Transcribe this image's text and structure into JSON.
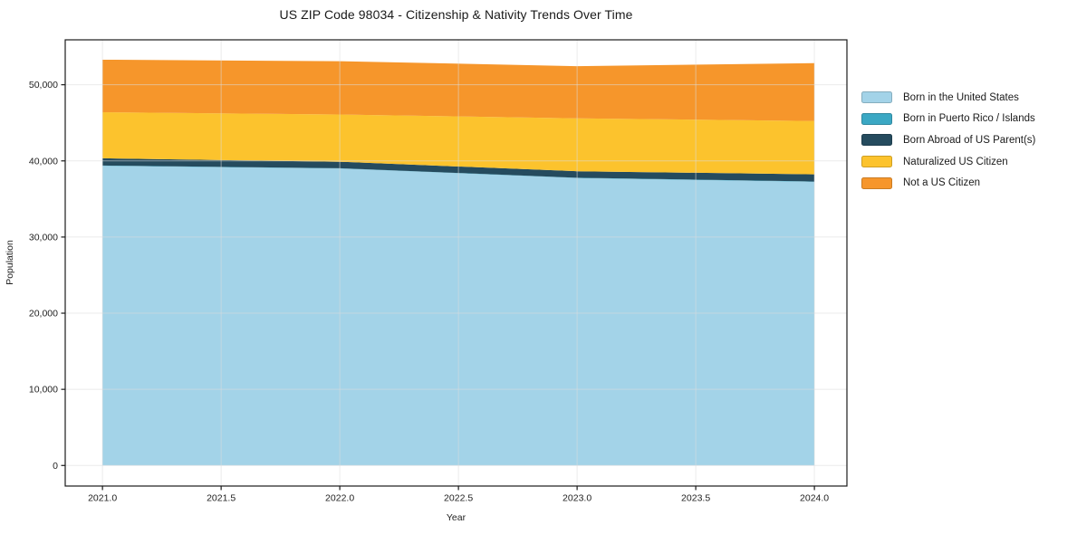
{
  "chart_data": {
    "type": "area",
    "stacked": true,
    "title": "US ZIP Code 98034 - Citizenship & Nativity Trends Over Time",
    "xlabel": "Year",
    "ylabel": "Population",
    "x": [
      2021,
      2022,
      2023,
      2024
    ],
    "series": [
      {
        "name": "Born in the United States",
        "color": "#a3d3e8",
        "values": [
          39350,
          39000,
          37750,
          37250
        ]
      },
      {
        "name": "Born in Puerto Rico / Islands",
        "color": "#3ba8c4",
        "values": [
          40,
          40,
          40,
          40
        ]
      },
      {
        "name": "Born Abroad of US Parent(s)",
        "color": "#254b5e",
        "values": [
          950,
          850,
          850,
          950
        ]
      },
      {
        "name": "Naturalized US Citizen",
        "color": "#fcc32d",
        "values": [
          6050,
          6200,
          6950,
          7000
        ]
      },
      {
        "name": "Not a US Citizen",
        "color": "#f6962b",
        "values": [
          6900,
          7000,
          6850,
          7600
        ]
      }
    ],
    "totals": [
      53290,
      53090,
      52440,
      52840
    ],
    "xticks": [
      2021.0,
      2021.5,
      2022.0,
      2022.5,
      2023.0,
      2023.5,
      2024.0
    ],
    "xtick_labels": [
      "2021.0",
      "2021.5",
      "2022.0",
      "2022.5",
      "2023.0",
      "2023.5",
      "2024.0"
    ],
    "yticks": [
      0,
      10000,
      20000,
      30000,
      40000,
      50000
    ],
    "ytick_labels": [
      "0",
      "10,000",
      "20,000",
      "30,000",
      "40,000",
      "50,000"
    ],
    "xlim": [
      2020.843,
      2024.137
    ],
    "ylim": [
      -2700,
      55900
    ],
    "grid": true,
    "grid_color": "#dcdcdc",
    "legend_position": "right",
    "frame_color": "#1a1a1a"
  }
}
